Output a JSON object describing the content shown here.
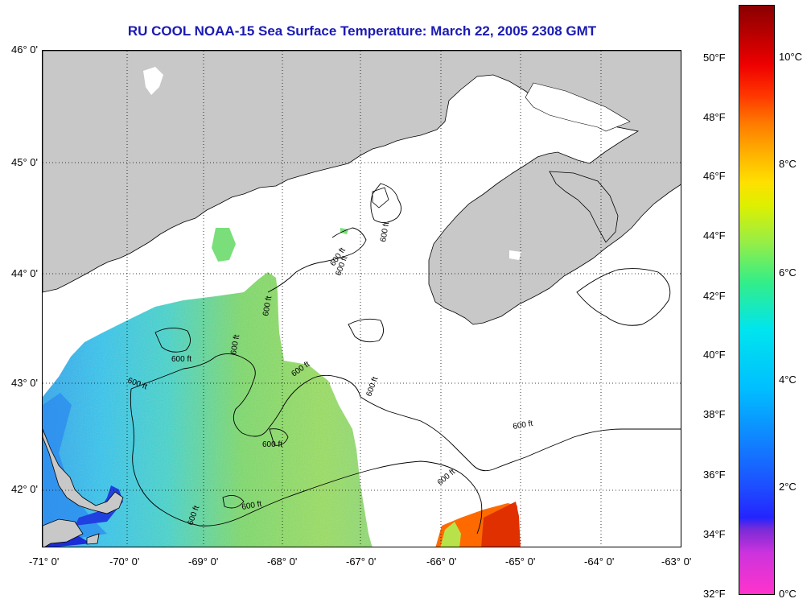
{
  "title": "RU COOL  NOAA-15  Sea Surface Temperature:  March 22, 2005 2308 GMT",
  "lat_labels": [
    "46° 0'",
    "45° 0'",
    "44° 0'",
    "43° 0'",
    "42° 0'"
  ],
  "lon_labels": [
    "-71° 0'",
    "-70° 0'",
    "-69° 0'",
    "-68° 0'",
    "-67° 0'",
    "-66° 0'",
    "-65° 0'",
    "-64° 0'",
    "-63° 0'"
  ],
  "contour_labels": [
    "600 ft",
    "600 ft",
    "600 ft",
    "600 ft",
    "600 ft",
    "600 ft",
    "600 ft",
    "600 ft",
    "600 ft",
    "600 ft",
    "600 ft",
    "600 ft",
    "600 ft",
    "600 ft"
  ],
  "colorbar": {
    "fahrenheit": [
      "50°F",
      "48°F",
      "46°F",
      "44°F",
      "42°F",
      "40°F",
      "38°F",
      "36°F",
      "34°F",
      "32°F"
    ],
    "celsius": [
      "10°C",
      "8°C",
      "6°C",
      "4°C",
      "2°C",
      "0°C"
    ]
  },
  "colors": {
    "land": "#c8c8c8",
    "cloud": "#ffffff",
    "title": "#1a1ab4",
    "water_cold": "#33ccee",
    "water_mid": "#88dd66",
    "water_warm": "#ff6a00"
  }
}
